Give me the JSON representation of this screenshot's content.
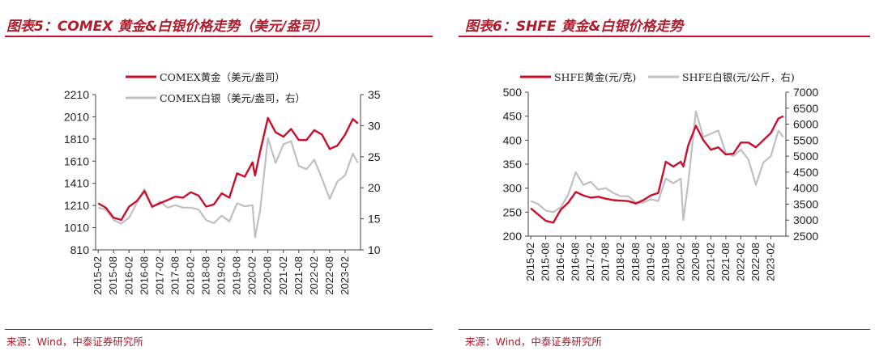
{
  "left": {
    "title": "图表5：COMEX 黄金&白银价格走势（美元/盎司）",
    "source": "来源：Wind，中泰证券研究所"
  },
  "right": {
    "title": "图表6：SHFE 黄金&白银价格走势",
    "source": "来源：Wind，中泰证券研究所"
  },
  "colors": {
    "gold": "#c8102e",
    "silver": "#c0c0c0",
    "accent": "#c8102e"
  },
  "chart_data": [
    {
      "type": "line",
      "x_ticks": [
        "2015-02",
        "2015-08",
        "2016-02",
        "2016-08",
        "2017-02",
        "2017-08",
        "2018-02",
        "2018-08",
        "2019-02",
        "2019-08",
        "2020-02",
        "2020-08",
        "2021-02",
        "2021-08",
        "2022-02",
        "2022-08",
        "2023-02"
      ],
      "y_left": {
        "ticks": [
          810,
          1010,
          1210,
          1410,
          1610,
          1810,
          2010,
          2210
        ],
        "ylim": [
          810,
          2210
        ]
      },
      "y_right": {
        "ticks": [
          10,
          15,
          20,
          25,
          30,
          35
        ],
        "ylim": [
          10,
          35
        ]
      },
      "legend_position": "top-center",
      "series": [
        {
          "name": "COMEX黄金（美元/盎司）",
          "axis": "left",
          "color": "#c8102e",
          "x": [
            "2015-02",
            "2015-05",
            "2015-08",
            "2015-11",
            "2016-02",
            "2016-05",
            "2016-08",
            "2016-11",
            "2017-02",
            "2017-05",
            "2017-08",
            "2017-11",
            "2018-02",
            "2018-05",
            "2018-08",
            "2018-11",
            "2019-02",
            "2019-05",
            "2019-08",
            "2019-11",
            "2020-02",
            "2020-03",
            "2020-05",
            "2020-08",
            "2020-11",
            "2021-02",
            "2021-05",
            "2021-08",
            "2021-11",
            "2022-02",
            "2022-05",
            "2022-08",
            "2022-11",
            "2023-02",
            "2023-05",
            "2023-07"
          ],
          "values": [
            1230,
            1190,
            1100,
            1080,
            1200,
            1250,
            1340,
            1200,
            1230,
            1260,
            1290,
            1280,
            1330,
            1300,
            1200,
            1220,
            1320,
            1280,
            1500,
            1470,
            1600,
            1480,
            1700,
            2000,
            1870,
            1830,
            1900,
            1800,
            1800,
            1890,
            1850,
            1720,
            1750,
            1850,
            1990,
            1950
          ]
        },
        {
          "name": "COMEX白银（美元/盎司，右）",
          "axis": "right",
          "color": "#c0c0c0",
          "x": [
            "2015-02",
            "2015-05",
            "2015-08",
            "2015-11",
            "2016-02",
            "2016-05",
            "2016-08",
            "2016-11",
            "2017-02",
            "2017-05",
            "2017-08",
            "2017-11",
            "2018-02",
            "2018-05",
            "2018-08",
            "2018-11",
            "2019-02",
            "2019-05",
            "2019-08",
            "2019-11",
            "2020-02",
            "2020-03",
            "2020-05",
            "2020-08",
            "2020-11",
            "2021-02",
            "2021-05",
            "2021-08",
            "2021-11",
            "2022-02",
            "2022-05",
            "2022-08",
            "2022-11",
            "2023-02",
            "2023-05",
            "2023-07"
          ],
          "values": [
            16.8,
            16.5,
            14.8,
            14.2,
            15.2,
            17.5,
            19.8,
            16.8,
            17.8,
            16.8,
            17.2,
            16.8,
            16.8,
            16.5,
            14.8,
            14.3,
            15.5,
            14.6,
            17.5,
            17.0,
            17.2,
            12.0,
            16.5,
            28.0,
            24.0,
            27.0,
            27.5,
            23.5,
            23.0,
            24.5,
            21.5,
            18.2,
            21.0,
            22.0,
            25.5,
            24.0
          ]
        }
      ]
    },
    {
      "type": "line",
      "x_ticks": [
        "2015-02",
        "2015-08",
        "2016-02",
        "2016-08",
        "2017-02",
        "2017-08",
        "2018-02",
        "2018-08",
        "2019-02",
        "2019-08",
        "2020-02",
        "2020-08",
        "2021-02",
        "2021-08",
        "2022-02",
        "2022-08",
        "2023-02"
      ],
      "y_left": {
        "ticks": [
          200,
          250,
          300,
          350,
          400,
          450,
          500
        ],
        "ylim": [
          200,
          500
        ]
      },
      "y_right": {
        "ticks": [
          2500,
          3000,
          3500,
          4000,
          4500,
          5000,
          5500,
          6000,
          6500,
          7000
        ],
        "ylim": [
          2500,
          7000
        ]
      },
      "legend_position": "top-center",
      "series": [
        {
          "name": "SHFE黄金(元/克)",
          "axis": "left",
          "color": "#c8102e",
          "x": [
            "2015-02",
            "2015-05",
            "2015-08",
            "2015-11",
            "2016-02",
            "2016-05",
            "2016-08",
            "2016-11",
            "2017-02",
            "2017-05",
            "2017-08",
            "2017-11",
            "2018-02",
            "2018-05",
            "2018-08",
            "2018-11",
            "2019-02",
            "2019-05",
            "2019-08",
            "2019-11",
            "2020-02",
            "2020-03",
            "2020-05",
            "2020-08",
            "2020-11",
            "2021-02",
            "2021-05",
            "2021-08",
            "2021-11",
            "2022-02",
            "2022-05",
            "2022-08",
            "2022-11",
            "2023-02",
            "2023-05",
            "2023-07"
          ],
          "values": [
            258,
            245,
            232,
            228,
            255,
            270,
            292,
            285,
            280,
            282,
            278,
            275,
            274,
            273,
            268,
            275,
            285,
            290,
            355,
            345,
            355,
            345,
            390,
            430,
            400,
            380,
            385,
            370,
            372,
            395,
            395,
            385,
            400,
            415,
            445,
            450
          ]
        },
        {
          "name": "SHFE白银(元/公斤，右)",
          "axis": "right",
          "color": "#c0c0c0",
          "x": [
            "2015-02",
            "2015-05",
            "2015-08",
            "2015-11",
            "2016-02",
            "2016-05",
            "2016-08",
            "2016-11",
            "2017-02",
            "2017-05",
            "2017-08",
            "2017-11",
            "2018-02",
            "2018-05",
            "2018-08",
            "2018-11",
            "2019-02",
            "2019-05",
            "2019-08",
            "2019-11",
            "2020-02",
            "2020-03",
            "2020-05",
            "2020-08",
            "2020-11",
            "2021-02",
            "2021-05",
            "2021-08",
            "2021-11",
            "2022-02",
            "2022-05",
            "2022-08",
            "2022-11",
            "2023-02",
            "2023-05",
            "2023-07"
          ],
          "values": [
            3600,
            3500,
            3300,
            3250,
            3400,
            3800,
            4500,
            4100,
            4200,
            3950,
            4000,
            3850,
            3750,
            3750,
            3550,
            3550,
            3650,
            3600,
            4300,
            4150,
            4300,
            3000,
            4200,
            6400,
            5600,
            5700,
            5800,
            5100,
            5000,
            5200,
            4900,
            4100,
            4800,
            5000,
            5800,
            5600
          ]
        }
      ]
    }
  ]
}
